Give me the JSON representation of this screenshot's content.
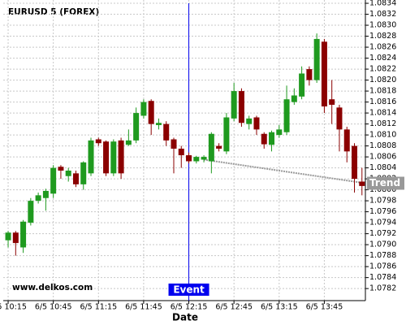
{
  "chart_data": {
    "type": "candlestick",
    "title": "EURUSD 5 (FOREX)",
    "watermark": "www.delkos.com",
    "x_label": "Date",
    "categories": [
      "6/5 10:15",
      null,
      null,
      null,
      null,
      null,
      "6/5 10:45",
      null,
      null,
      null,
      null,
      null,
      "6/5 11:15",
      null,
      null,
      null,
      null,
      null,
      "6/5 11:45",
      null,
      null,
      null,
      null,
      null,
      "6/5 12:15",
      null,
      null,
      null,
      null,
      null,
      "6/5 12:45",
      null,
      null,
      null,
      null,
      null,
      "6/5 13:15",
      null,
      null,
      null,
      null,
      null,
      "6/5 13:45",
      null,
      null,
      null,
      null,
      null
    ],
    "open": [
      1.07908,
      1.07922,
      1.07895,
      1.0794,
      1.0798,
      1.07985,
      1.07993,
      1.08042,
      1.08025,
      1.0803,
      1.0801,
      1.0803,
      1.08092,
      1.08088,
      1.0803,
      1.0809,
      1.08082,
      1.0809,
      1.08135,
      1.08162,
      1.08118,
      1.0812,
      1.08092,
      1.08075,
      1.08063,
      1.08052,
      1.08055,
      1.08052,
      1.0808,
      1.0807,
      1.0813,
      1.0818,
      1.0812,
      1.08132,
      1.08102,
      1.08082,
      1.081,
      1.08105,
      1.0816,
      1.0817,
      1.0822,
      1.082,
      1.0827,
      1.08165,
      1.0815,
      1.0811,
      1.0808,
      1.08015
    ],
    "high": [
      1.07925,
      1.07925,
      1.07945,
      1.07985,
      1.07995,
      1.08002,
      1.08045,
      1.08045,
      1.0804,
      1.08035,
      1.08052,
      1.08095,
      1.08095,
      1.0809,
      1.08092,
      1.08095,
      1.0811,
      1.0815,
      1.08165,
      1.08165,
      1.0813,
      1.08125,
      1.08095,
      1.0808,
      1.08068,
      1.08062,
      1.08063,
      1.08105,
      1.08085,
      1.0814,
      1.08195,
      1.08185,
      1.08135,
      1.08135,
      1.08105,
      1.08108,
      1.08118,
      1.0819,
      1.08185,
      1.08225,
      1.08225,
      1.08285,
      1.08275,
      1.082,
      1.08155,
      1.08115,
      1.08085,
      1.0804
    ],
    "low": [
      1.07895,
      1.0788,
      1.07885,
      1.07935,
      1.07975,
      1.07962,
      1.07985,
      1.0802,
      1.08015,
      1.08005,
      1.08,
      1.08025,
      1.0808,
      1.08025,
      1.08025,
      1.0802,
      1.0808,
      1.08085,
      1.0813,
      1.081,
      1.0811,
      1.0808,
      1.0803,
      1.0804,
      1.08048,
      1.08048,
      1.0805,
      1.0803,
      1.0807,
      1.08065,
      1.08125,
      1.08115,
      1.0811,
      1.081,
      1.08075,
      1.0807,
      1.08095,
      1.081,
      1.08155,
      1.08165,
      1.0819,
      1.08195,
      1.0814,
      1.0812,
      1.0807,
      1.0805,
      1.07995,
      1.0799
    ],
    "close": [
      1.07922,
      1.07903,
      1.07942,
      1.0798,
      1.0799,
      1.07998,
      1.0804,
      1.08035,
      1.08035,
      1.0801,
      1.0805,
      1.0809,
      1.08085,
      1.0803,
      1.08088,
      1.0803,
      1.0809,
      1.0814,
      1.0816,
      1.0812,
      1.08122,
      1.0809,
      1.08075,
      1.08063,
      1.08052,
      1.0806,
      1.0806,
      1.08102,
      1.08075,
      1.08132,
      1.0818,
      1.08122,
      1.0813,
      1.0811,
      1.08083,
      1.08105,
      1.0811,
      1.08165,
      1.08172,
      1.08212,
      1.082,
      1.08275,
      1.08152,
      1.08155,
      1.0811,
      1.0807,
      1.0802,
      1.08007
    ],
    "up_color": "#1f9a1f",
    "down_color": "#8b0000",
    "ylim": [
      1.07798,
      1.08346
    ],
    "yticks": [
      1.0782,
      1.0784,
      1.0786,
      1.0788,
      {
        "value": 1.079,
        "label": "1.0790"
      },
      1.0792,
      1.0794,
      1.0796,
      1.0798,
      {
        "value": 1.08,
        "label": "1.0800"
      },
      1.0802,
      1.0804,
      1.0806,
      1.0808,
      {
        "value": 1.081,
        "label": "1.0810"
      },
      1.0812,
      1.0814,
      1.0816,
      1.0818,
      {
        "value": 1.082,
        "label": "1.0820"
      },
      1.0822,
      1.0824,
      1.0826,
      1.0828,
      {
        "value": 1.083,
        "label": "1.0830"
      },
      1.0832,
      1.0834
    ],
    "grid": true,
    "event": {
      "label": "Event",
      "x": "6/5 12:15",
      "color": "#0000ee"
    },
    "trend": {
      "label": "Trend",
      "values": [
        1.08055,
        1.08012
      ],
      "color": "#999999"
    }
  }
}
